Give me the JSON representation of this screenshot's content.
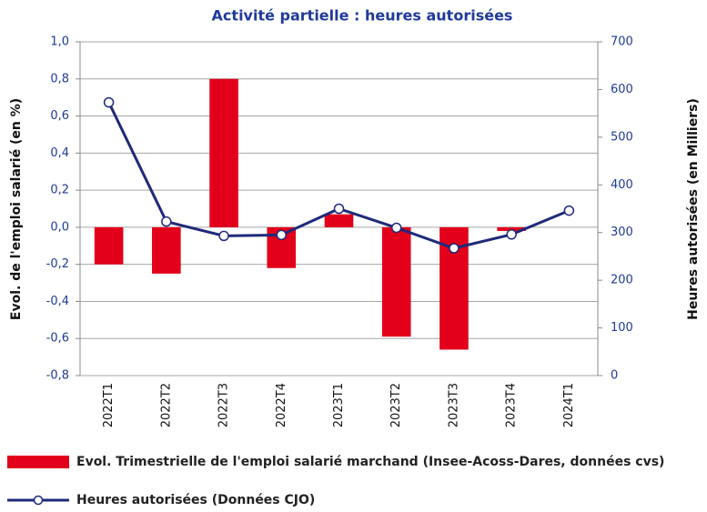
{
  "chart_data": {
    "type": "bar_line",
    "title": "Activité partielle : heures autorisées",
    "y_label": "Evol. de l'emploi salarié (en %)",
    "y2_label": "Heures autorisées (en Milliers)",
    "categories": [
      "2022T1",
      "2022T2",
      "2022T3",
      "2022T4",
      "2023T1",
      "2023T2",
      "2023T3",
      "2023T4",
      "2024T1"
    ],
    "series": [
      {
        "name": "Evol. Trimestrielle de l'emploi salarié marchand (Insee-Acoss-Dares, données cvs)",
        "type": "bar",
        "color": "#e2001a",
        "values": [
          -0.2,
          -0.25,
          0.8,
          -0.22,
          0.07,
          -0.59,
          -0.66,
          -0.02,
          null
        ]
      },
      {
        "name": "Heures autorisées (Données CJO)",
        "type": "line",
        "axis": "y2",
        "color": "#1f2a7a",
        "values": [
          573,
          323,
          293,
          295,
          350,
          310,
          267,
          296,
          346
        ]
      }
    ],
    "ylim": [
      -0.8,
      1.0
    ],
    "yticks": [
      {
        "value": -0.8,
        "label": "-0,8"
      },
      {
        "value": -0.6,
        "label": "-0,6"
      },
      {
        "value": -0.4,
        "label": "-0,4"
      },
      {
        "value": -0.2,
        "label": "-0,2"
      },
      {
        "value": 0,
        "label": "0,0"
      },
      {
        "value": 0.2,
        "label": "0,2"
      },
      {
        "value": 0.4,
        "label": "0,4"
      },
      {
        "value": 0.6,
        "label": "0,6"
      },
      {
        "value": 0.8,
        "label": "0,8"
      },
      {
        "value": 1.0,
        "label": "1,0"
      }
    ],
    "y2lim": [
      0,
      700
    ],
    "y2ticks": [
      0,
      100,
      200,
      300,
      400,
      500,
      600,
      700
    ],
    "grid": true
  }
}
